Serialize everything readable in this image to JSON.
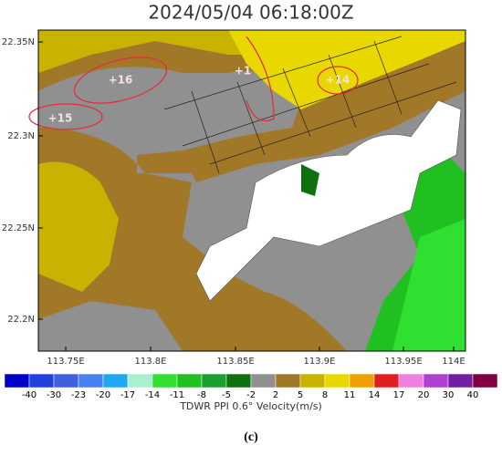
{
  "title": "2024/05/04 06:18:00Z",
  "x_labels": [
    "113.75E",
    "113.8E",
    "113.85E",
    "113.9E",
    "113.95E",
    "114E"
  ],
  "y_labels": [
    "22.35N",
    "22.3N",
    "22.25N",
    "22.2N"
  ],
  "annotations": [
    "+16",
    "+15",
    "+14",
    "+1"
  ],
  "colorbar": {
    "colors": [
      "#0000c8",
      "#2040e0",
      "#4060e0",
      "#4a80f0",
      "#20a8f0",
      "#a8f0d0",
      "#30e030",
      "#20c020",
      "#18a030",
      "#107010",
      "#909090",
      "#a07828",
      "#c8b400",
      "#e8d800",
      "#f0a000",
      "#e02020",
      "#f080e0",
      "#b040d0",
      "#7020a0",
      "#800040"
    ],
    "labels": [
      "-40",
      "-30",
      "-23",
      "-20",
      "-17",
      "-14",
      "-11",
      "-8",
      "-5",
      "-2",
      "2",
      "5",
      "8",
      "11",
      "14",
      "17",
      "20",
      "30",
      "40"
    ],
    "title": "TDWR PPI 0.6° Velocity(m/s)"
  },
  "caption": "(c)"
}
